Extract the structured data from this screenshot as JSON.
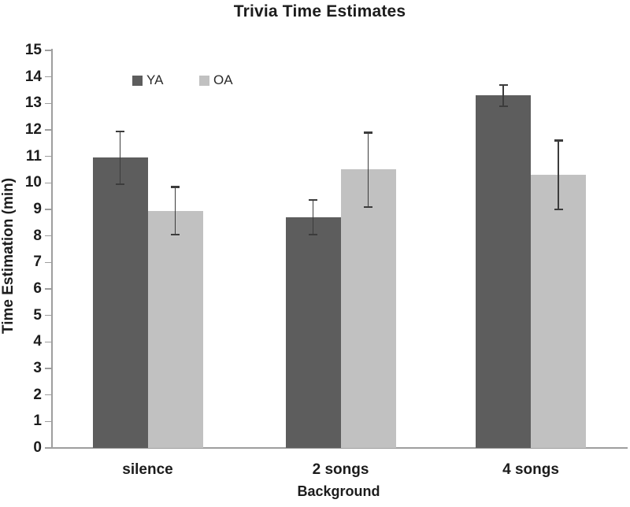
{
  "chart_data": {
    "type": "bar",
    "title": "Trivia Time Estimates",
    "xlabel": "Background",
    "ylabel": "Time Estimation (min)",
    "categories": [
      "silence",
      "2 songs",
      "4 songs"
    ],
    "series": [
      {
        "name": "YA",
        "color": "#5d5d5d",
        "values": [
          10.95,
          8.7,
          13.3
        ],
        "errors": [
          1.0,
          0.65,
          0.4
        ]
      },
      {
        "name": "OA",
        "color": "#c1c1c1",
        "values": [
          8.95,
          10.5,
          10.3
        ],
        "errors": [
          0.9,
          1.4,
          1.3
        ]
      }
    ],
    "ylim": [
      0,
      15
    ],
    "yticks": [
      0,
      1,
      2,
      3,
      4,
      5,
      6,
      7,
      8,
      9,
      10,
      11,
      12,
      13,
      14,
      15
    ],
    "grid": false,
    "legend_position": "inside-top-left",
    "error_bars": true
  },
  "colors": {
    "background": "#ffffff",
    "axis": "#9e9e9e",
    "text": "#1c1c1c",
    "error_bar": "#3c3c3c"
  }
}
